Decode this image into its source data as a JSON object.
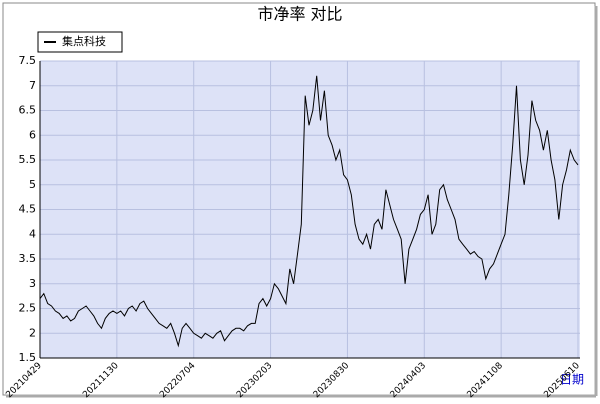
{
  "chart_data": {
    "type": "line",
    "title": "市净率  对比",
    "x_label": "日期",
    "categories": [
      "20210429",
      null,
      null,
      null,
      null,
      null,
      null,
      null,
      null,
      null,
      null,
      null,
      null,
      null,
      null,
      null,
      null,
      null,
      null,
      null,
      "20211130",
      null,
      null,
      null,
      null,
      null,
      null,
      null,
      null,
      null,
      null,
      null,
      null,
      null,
      null,
      null,
      null,
      null,
      null,
      null,
      "20220704",
      null,
      null,
      null,
      null,
      null,
      null,
      null,
      null,
      null,
      null,
      null,
      null,
      null,
      null,
      null,
      null,
      null,
      null,
      null,
      "20230203",
      null,
      null,
      null,
      null,
      null,
      null,
      null,
      null,
      null,
      null,
      null,
      null,
      null,
      null,
      null,
      null,
      null,
      null,
      null,
      "20230830",
      null,
      null,
      null,
      null,
      null,
      null,
      null,
      null,
      null,
      null,
      null,
      null,
      null,
      null,
      null,
      null,
      null,
      null,
      null,
      "20240403",
      null,
      null,
      null,
      null,
      null,
      null,
      null,
      null,
      null,
      null,
      null,
      null,
      null,
      null,
      null,
      null,
      null,
      null,
      null,
      "20241108",
      null,
      null,
      null,
      null,
      null,
      null,
      null,
      null,
      null,
      null,
      null,
      null,
      null,
      null,
      null,
      null,
      null,
      null,
      null,
      "20250610"
    ],
    "series": [
      {
        "name": "集点科技",
        "color": "#000000",
        "values": [
          2.7,
          2.8,
          2.6,
          2.55,
          2.45,
          2.4,
          2.3,
          2.35,
          2.25,
          2.3,
          2.45,
          2.5,
          2.55,
          2.45,
          2.35,
          2.2,
          2.1,
          2.3,
          2.4,
          2.45,
          2.4,
          2.45,
          2.35,
          2.5,
          2.55,
          2.45,
          2.6,
          2.65,
          2.5,
          2.4,
          2.3,
          2.2,
          2.15,
          2.1,
          2.2,
          2.0,
          1.75,
          2.1,
          2.2,
          2.1,
          2.0,
          1.95,
          1.9,
          2.0,
          1.95,
          1.9,
          2.0,
          2.05,
          1.85,
          1.95,
          2.05,
          2.1,
          2.1,
          2.05,
          2.15,
          2.2,
          2.2,
          2.6,
          2.7,
          2.55,
          2.7,
          3.0,
          2.9,
          2.75,
          2.6,
          3.3,
          3.0,
          3.6,
          4.2,
          6.8,
          6.2,
          6.5,
          7.2,
          6.3,
          6.9,
          6.0,
          5.8,
          5.5,
          5.7,
          5.2,
          5.1,
          4.8,
          4.2,
          3.9,
          3.8,
          4.0,
          3.7,
          4.2,
          4.3,
          4.1,
          4.9,
          4.6,
          4.3,
          4.1,
          3.9,
          3.0,
          3.7,
          3.9,
          4.1,
          4.4,
          4.5,
          4.8,
          4.0,
          4.2,
          4.9,
          5.0,
          4.7,
          4.5,
          4.3,
          3.9,
          3.8,
          3.7,
          3.6,
          3.65,
          3.55,
          3.5,
          3.1,
          3.3,
          3.4,
          3.6,
          3.8,
          4.0,
          4.8,
          5.8,
          7.0,
          5.5,
          5.0,
          5.6,
          6.7,
          6.3,
          6.1,
          5.7,
          6.1,
          5.5,
          5.1,
          4.3,
          5.0,
          5.3,
          5.7,
          5.5,
          5.4
        ]
      }
    ],
    "ylim": [
      1.5,
      7.5
    ],
    "yticks": [
      1.5,
      2.0,
      2.5,
      3.0,
      3.5,
      4.0,
      4.5,
      5.0,
      5.5,
      6.0,
      6.5,
      7.0,
      7.5
    ],
    "grid": true
  }
}
